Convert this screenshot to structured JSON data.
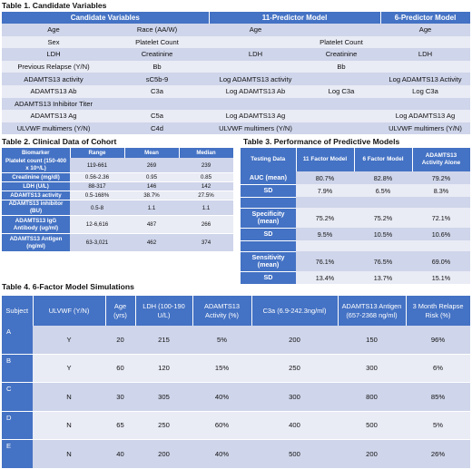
{
  "table1": {
    "caption": "Table 1. Candidate Variables",
    "headers": [
      "Candidate Variables",
      "11-Predictor Model",
      "6-Predictor Model"
    ],
    "rows": [
      [
        "Age",
        "Race (AA/W)",
        "Age",
        "",
        "Age"
      ],
      [
        "Sex",
        "Platelet Count",
        "",
        "Platelet Count",
        ""
      ],
      [
        "LDH",
        "Creatinine",
        "LDH",
        "Creatinine",
        "LDH"
      ],
      [
        "Previous Relapse (Y/N)",
        "Bb",
        "",
        "Bb",
        ""
      ],
      [
        "ADAMTS13 activity",
        "sC5b-9",
        "Log ADAMTS13 activity",
        "",
        "Log ADAMTS13 Activity"
      ],
      [
        "ADAMTS13 Ab",
        "C3a",
        "Log ADAMTS13 Ab",
        "Log C3a",
        "Log C3a"
      ],
      [
        "ADAMTS13 Inhibitor Titer",
        "",
        "",
        "",
        ""
      ],
      [
        "ADAMTS13 Ag",
        "C5a",
        "Log ADAMTS13 Ag",
        "",
        "Log ADAMTS13 Ag"
      ],
      [
        "ULVWF multimers (Y/N)",
        "C4d",
        "ULVWF multimers (Y/N)",
        "",
        "ULVWF multimers (Y/N)"
      ]
    ]
  },
  "table2": {
    "caption": "Table 2. Clinical Data of Cohort",
    "headers": [
      "Biomarker",
      "Range",
      "Mean",
      "Median"
    ],
    "rows": [
      [
        "Platelet count (150-400 x 10⁹/L)",
        "119-661",
        "269",
        "239"
      ],
      [
        "Creatinine (mg/dl)",
        "0.56-2.36",
        "0.95",
        "0.85"
      ],
      [
        "LDH  (U/L)",
        "88-317",
        "146",
        "142"
      ],
      [
        "ADAMTS13 activity",
        "0.5-168%",
        "38.7%",
        "27.5%"
      ],
      [
        "ADAMTS13 inhibitor (BU)",
        "0.5-8",
        "1.1",
        "1.1"
      ],
      [
        "ADAMTS13 IgG Antibody (ug/ml)",
        "12-6,616",
        "487",
        "266"
      ],
      [
        "ADAMTS13 Antigen (ng/ml)",
        "63-3,021",
        "462",
        "374"
      ]
    ]
  },
  "table3": {
    "caption": "Table 3. Performance of Predictive Models",
    "headers": [
      "Testing Data",
      "11 Factor Model",
      "6 Factor Model",
      "ADAMTS13 Activity Alone"
    ],
    "rows": [
      [
        "AUC (mean)",
        "80.7%",
        "82.8%",
        "79.2%"
      ],
      [
        "SD",
        "7.9%",
        "6.5%",
        "8.3%"
      ],
      [
        "",
        "",
        "",
        ""
      ],
      [
        "Specificity (mean)",
        "75.2%",
        "75.2%",
        "72.1%"
      ],
      [
        "SD",
        "9.5%",
        "10.5%",
        "10.6%"
      ],
      [
        "",
        "",
        "",
        ""
      ],
      [
        "Sensitivity (mean)",
        "76.1%",
        "76.5%",
        "69.0%"
      ],
      [
        "SD",
        "13.4%",
        "13.7%",
        "15.1%"
      ]
    ]
  },
  "table4": {
    "caption": "Table 4. 6-Factor Model Simulations",
    "headers": [
      "Subject",
      "ULVWF (Y/N)",
      "Age (yrs)",
      "LDH (100-190 U/L)",
      "ADAMTS13 Activity (%)",
      "C3a (6.9-242.3ng/ml)",
      "ADAMTS13 Antigen (657-2368 ng/ml)",
      "3 Month Relapse Risk (%)"
    ],
    "rows": [
      [
        "A",
        "Y",
        "20",
        "215",
        "5%",
        "200",
        "150",
        "96%"
      ],
      [
        "B",
        "Y",
        "60",
        "120",
        "15%",
        "250",
        "300",
        "6%"
      ],
      [
        "C",
        "N",
        "30",
        "305",
        "40%",
        "300",
        "800",
        "85%"
      ],
      [
        "D",
        "N",
        "65",
        "250",
        "60%",
        "400",
        "500",
        "5%"
      ],
      [
        "E",
        "N",
        "40",
        "200",
        "40%",
        "500",
        "200",
        "26%"
      ]
    ]
  }
}
